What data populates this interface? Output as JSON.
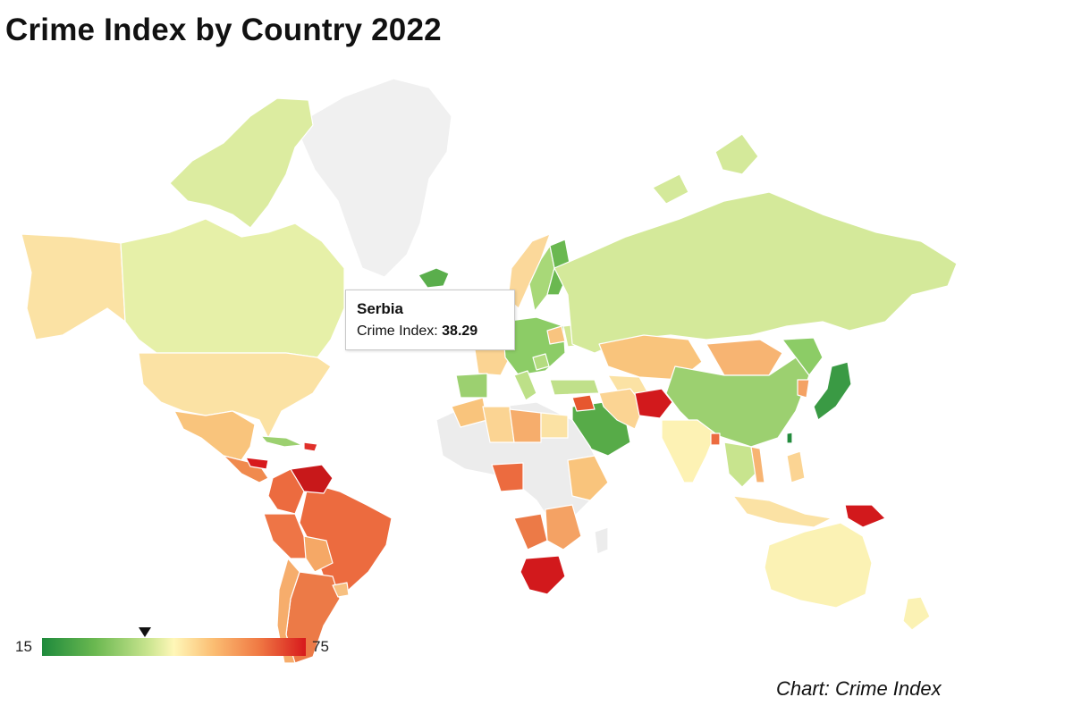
{
  "title": "Crime Index by Country 2022",
  "tooltip": {
    "country": "Serbia",
    "label": "Crime Index:",
    "value": "38.29"
  },
  "legend": {
    "min": "15",
    "max": "75",
    "marker_value": 38.29,
    "colors": [
      "#1e8a3c",
      "#6ab850",
      "#c8e48e",
      "#fff7b8",
      "#fbbd72",
      "#f07a44",
      "#d7191c"
    ],
    "no_data_color": "#f2f2f2"
  },
  "source": "Chart: Crime Index"
}
